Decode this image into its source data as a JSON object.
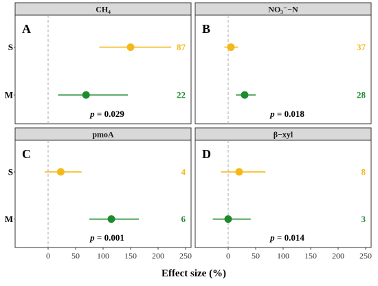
{
  "colors": {
    "S": "#F5B818",
    "M": "#1E8A2E"
  },
  "x_axis": {
    "label": "Effect size (%)",
    "ticks": [
      0,
      50,
      100,
      150,
      200,
      250
    ],
    "range": [
      -60,
      260
    ]
  },
  "group_labels": [
    "S",
    "M"
  ],
  "chart_data": [
    {
      "type": "forest",
      "panel": "A",
      "title": "CH₄",
      "p_value": "0.029",
      "groups": [
        {
          "name": "S",
          "estimate": 150,
          "ci": [
            93,
            224
          ],
          "n": "87"
        },
        {
          "name": "M",
          "estimate": 69,
          "ci": [
            18,
            145
          ],
          "n": "22"
        }
      ]
    },
    {
      "type": "forest",
      "panel": "B",
      "title": "NO₃⁻−N",
      "p_value": "0.018",
      "groups": [
        {
          "name": "S",
          "estimate": 5,
          "ci": [
            -7,
            18
          ],
          "n": "37"
        },
        {
          "name": "M",
          "estimate": 30,
          "ci": [
            14,
            50
          ],
          "n": "28"
        }
      ]
    },
    {
      "type": "forest",
      "panel": "C",
      "title": "pmoA",
      "p_value": "0.001",
      "groups": [
        {
          "name": "S",
          "estimate": 23,
          "ci": [
            -6,
            61
          ],
          "n": "4"
        },
        {
          "name": "M",
          "estimate": 115,
          "ci": [
            75,
            165
          ],
          "n": "6"
        }
      ]
    },
    {
      "type": "forest",
      "panel": "D",
      "title": "β−xyl",
      "p_value": "0.014",
      "groups": [
        {
          "name": "S",
          "estimate": 20,
          "ci": [
            -13,
            68
          ],
          "n": "8"
        },
        {
          "name": "M",
          "estimate": 0,
          "ci": [
            -28,
            41
          ],
          "n": "3"
        }
      ]
    }
  ]
}
